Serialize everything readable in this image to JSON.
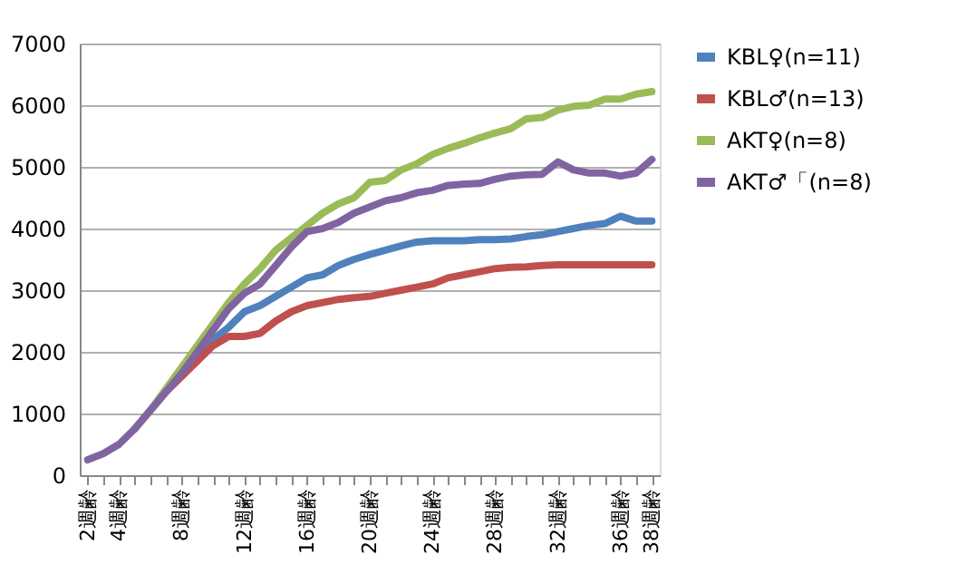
{
  "chart_data": {
    "type": "line",
    "categories": [
      "2週齢",
      null,
      "4週齢",
      null,
      null,
      null,
      "8週齢",
      null,
      null,
      null,
      "12週齢",
      null,
      null,
      null,
      "16週齢",
      null,
      null,
      null,
      "20週齢",
      null,
      null,
      null,
      "24週齢",
      null,
      null,
      null,
      "28週齢",
      null,
      null,
      null,
      "32週齢",
      null,
      null,
      null,
      "36週齢",
      null,
      "38週齢"
    ],
    "ylim": [
      0,
      7000
    ],
    "yticks": [
      0,
      1000,
      2000,
      3000,
      4000,
      5000,
      6000,
      7000
    ],
    "grid": "y",
    "legend": "right",
    "line_style": "solid",
    "marker": "none",
    "series": [
      {
        "name": "KBL♀(n=11)",
        "color": "#4f81bd",
        "values": [
          null,
          null,
          null,
          null,
          null,
          null,
          1650,
          1950,
          2200,
          2400,
          2650,
          2750,
          2900,
          3050,
          3200,
          3250,
          3400,
          3500,
          3580,
          3650,
          3720,
          3780,
          3800,
          3800,
          3800,
          3820,
          3820,
          3830,
          3870,
          3900,
          3950,
          4000,
          4050,
          4080,
          4200,
          4120,
          4120
        ]
      },
      {
        "name": "KBL♂(n=13)",
        "color": "#c0504d",
        "values": [
          null,
          null,
          null,
          750,
          1050,
          1350,
          1600,
          1850,
          2100,
          2250,
          2250,
          2300,
          2500,
          2650,
          2750,
          2800,
          2850,
          2880,
          2900,
          2950,
          3000,
          3050,
          3100,
          3200,
          3250,
          3300,
          3350,
          3370,
          3380,
          3400,
          3410,
          3410,
          3410,
          3410,
          3410,
          3410,
          3410
        ]
      },
      {
        "name": "AKT♀(n=8)",
        "color": "#9bbb59",
        "values": [
          null,
          null,
          null,
          750,
          1050,
          1400,
          1750,
          2100,
          2450,
          2800,
          3100,
          3350,
          3650,
          3850,
          4050,
          4250,
          4400,
          4500,
          4750,
          4780,
          4950,
          5050,
          5200,
          5300,
          5380,
          5470,
          5550,
          5620,
          5780,
          5800,
          5920,
          5980,
          6000,
          6100,
          6100,
          6180,
          6220
        ]
      },
      {
        "name": "AKT♂「(n=8)",
        "color": "#8064a2",
        "values": [
          250,
          350,
          500,
          750,
          1050,
          1350,
          1650,
          2000,
          2350,
          2700,
          2950,
          3100,
          3400,
          3700,
          3950,
          4000,
          4100,
          4250,
          4350,
          4450,
          4500,
          4580,
          4620,
          4700,
          4720,
          4730,
          4800,
          4850,
          4870,
          4880,
          5080,
          4950,
          4900,
          4900,
          4850,
          4900,
          5120
        ]
      }
    ]
  }
}
